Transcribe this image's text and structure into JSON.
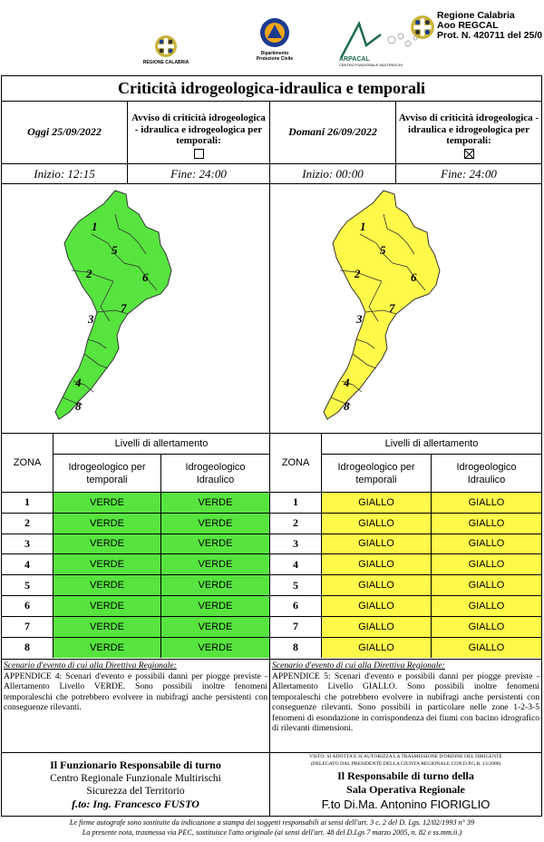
{
  "header": {
    "logo1_label": "REGIONE CALABRIA",
    "logo2_label_1": "Dipartimento",
    "logo2_label_2": "Protezione Civile",
    "logo3_label": "ARPACAL",
    "logo3_sub": "CENTRO FUNZIONALE MULTIRISCHI",
    "protocol_line1": "Regione Calabria",
    "protocol_line2": "Aoo REGCAL",
    "protocol_line3": "Prot. N. 420711 del 25/0"
  },
  "title": "Criticità idrogeologica-idraulica e temporali",
  "today": {
    "label": "Oggi 25/09/2022",
    "avviso": "Avviso di criticità idrogeologica - idraulica e idrogeologica per temporali:",
    "checked": false,
    "start": "Inizio: 12:15",
    "end": "Fine: 24:00",
    "color": "#57e43f"
  },
  "tomorrow": {
    "label": "Domani 26/09/2022",
    "avviso": "Avviso di criticità idrogeologica - idraulica e idrogeologica per temporali:",
    "checked": true,
    "start": "Inizio: 00:00",
    "end": "Fine: 24:00",
    "color": "#fff94a"
  },
  "map_zone_labels": [
    "1",
    "2",
    "3",
    "4",
    "5",
    "6",
    "7",
    "8"
  ],
  "table": {
    "zona_header": "ZONA",
    "livelli_header": "Livelli di allertamento",
    "col1_header": "Idrogeologico per temporali",
    "col2_header": "Idrogeologico Idraulico",
    "zones": [
      "1",
      "2",
      "3",
      "4",
      "5",
      "6",
      "7",
      "8"
    ],
    "today_levels": [
      [
        "VERDE",
        "VERDE"
      ],
      [
        "VERDE",
        "VERDE"
      ],
      [
        "VERDE",
        "VERDE"
      ],
      [
        "VERDE",
        "VERDE"
      ],
      [
        "VERDE",
        "VERDE"
      ],
      [
        "VERDE",
        "VERDE"
      ],
      [
        "VERDE",
        "VERDE"
      ],
      [
        "VERDE",
        "VERDE"
      ]
    ],
    "tomorrow_levels": [
      [
        "GIALLO",
        "GIALLO"
      ],
      [
        "GIALLO",
        "GIALLO"
      ],
      [
        "GIALLO",
        "GIALLO"
      ],
      [
        "GIALLO",
        "GIALLO"
      ],
      [
        "GIALLO",
        "GIALLO"
      ],
      [
        "GIALLO",
        "GIALLO"
      ],
      [
        "GIALLO",
        "GIALLO"
      ],
      [
        "GIALLO",
        "GIALLO"
      ]
    ]
  },
  "scenario_today": {
    "heading": "Scenario d'evento di cui alla Direttiva Regionale:",
    "text": "APPENDICE 4: Scenari d'evento e possibili danni per piogge previste - Allertamento Livello VERDE. Sono possibili inoltre fenomeni temporaleschi che potrebbero evolvere in nubifragi anche persistenti con conseguenze rilevanti."
  },
  "scenario_tomorrow": {
    "heading": "Scenario d'evento di cui alla Direttiva Regionale:",
    "text": "APPENDICE 5: Scenari d'evento e possibili danni per piogge previste - Allertamento Livello GIALLO. Sono possibili inoltre fenomeni temporaleschi che potrebbero evolvere in nubifragi anche persistenti con conseguenze rilevanti. Sono possibili in particolare nelle zone 1-2-3-5 fenomeni di esondazione in corrispondenza dei fiumi con bacino idrografico di rilevanti dimensioni."
  },
  "signature_left": {
    "role": "Il Funzionario Responsabile di turno",
    "office1": "Centro Regionale Funzionale Multirischi",
    "office2": "Sicurezza del Territorio",
    "name": "f.to: Ing. Francesco FUSTO"
  },
  "signature_right": {
    "visto1": "VISTO: SI ADOTTA E SI AUTORIZZA LA TRASMISSIONE D'ORDINE DEL DIRIGENTE",
    "visto2": "(DELEGATO DAL PRESIDENTE DELLA GIUNTA REGIONALE CON D.P.G.R. 13/2006)",
    "role": "Il Responsabile di turno della",
    "office": "Sala Operativa Regionale",
    "name": "F.to Di.Ma. Antonino FIORIGLIO"
  },
  "footer": {
    "line1": "Le firme autografe sono sostituite da indicazione a stampa dei soggetti responsabili ai sensi dell'art. 3 c. 2 del D. Lgs. 12/02/1993 n° 39",
    "line2": "La presente nota, trasmessa via PEC, sostituisce l'atto originale (ai sensi dell'art. 48 del D.Lgs 7 marzo 2005, n. 82 e ss.mm.ii.)"
  }
}
